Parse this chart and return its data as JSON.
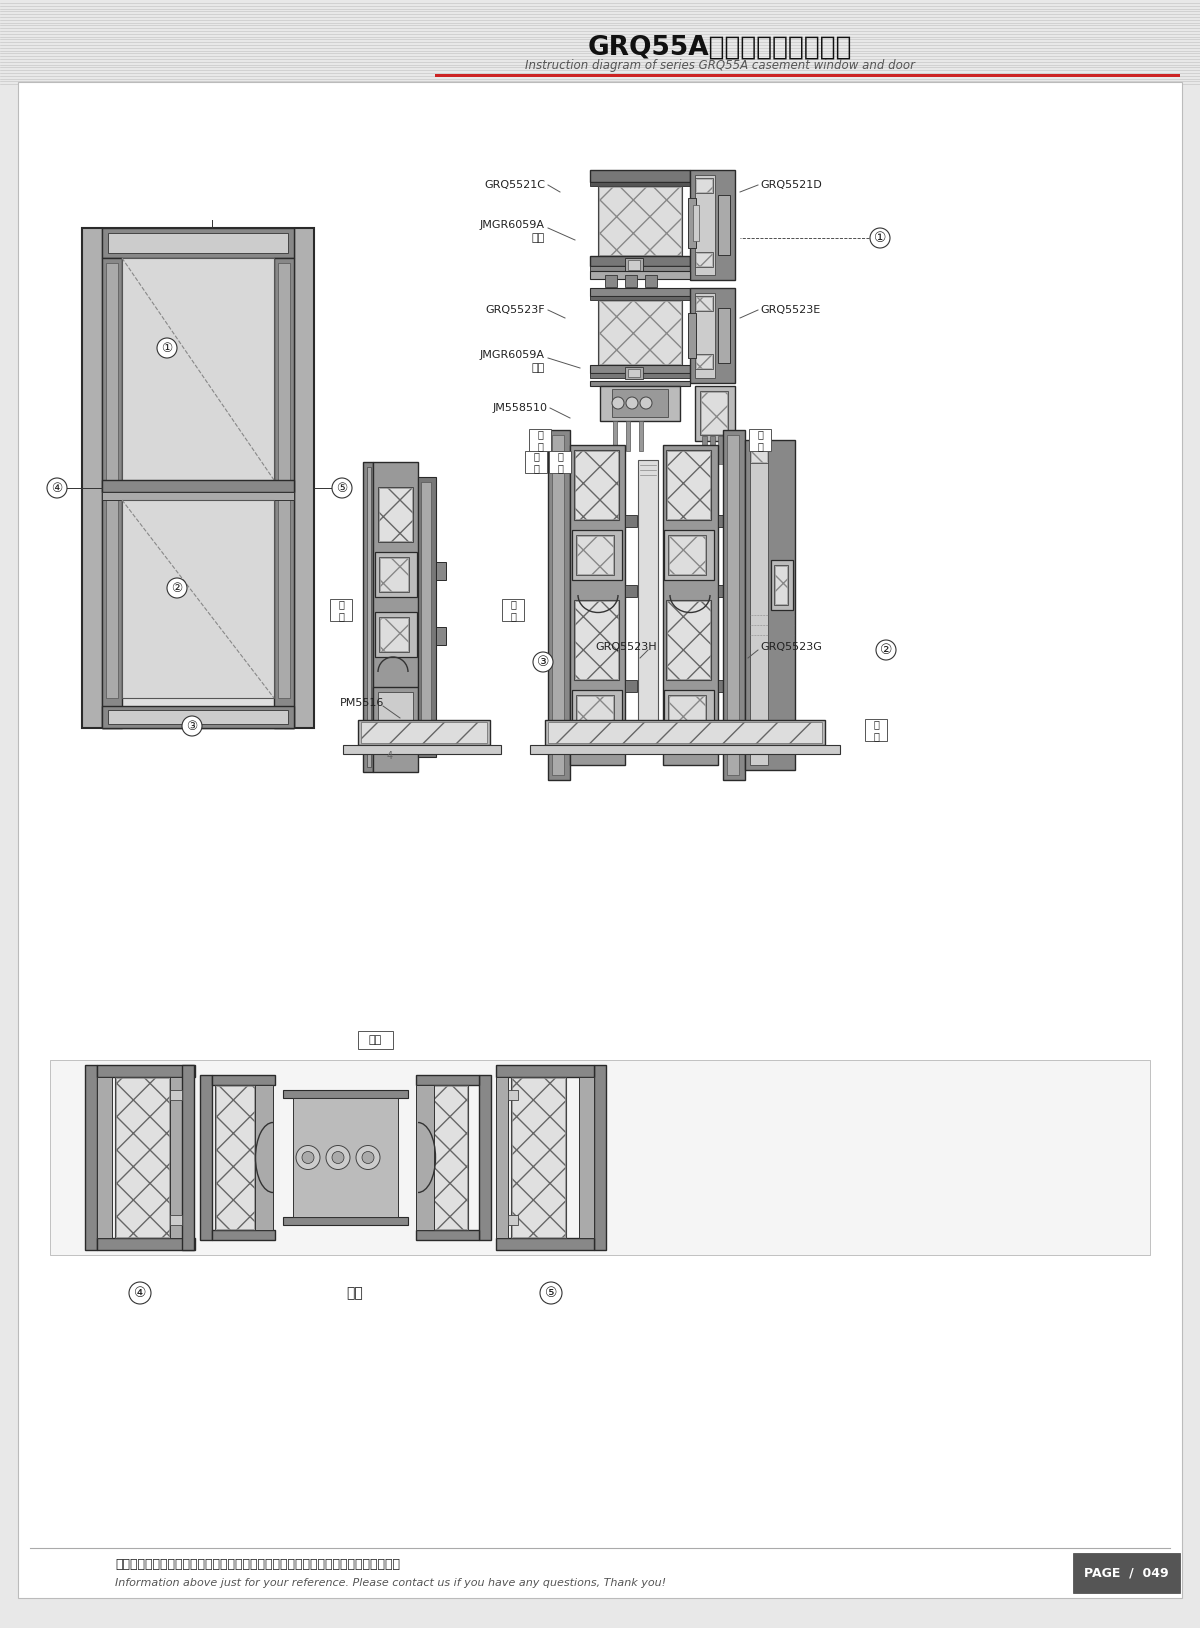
{
  "title_cn": "GRQ55A系列平开门窗结构图",
  "title_en": "Instruction diagram of series GRQ55A casement window and door",
  "footer_cn": "图中所示型材截面、装配、编号、尺寸及重量仅供参考。如有疑问，请向本公司查询。",
  "footer_en": "Information above just for your reference. Please contact us if you have any questions, Thank you!",
  "page": "PAGE  /  049",
  "bg_stripe_color": "#d8d8d8",
  "paper_color": "#ffffff",
  "dark_color": "#2a2a2a",
  "gray_color": "#888888",
  "medium_gray": "#555555",
  "light_gray": "#cccccc",
  "profile_gray": "#666666",
  "fill_gray": "#999999",
  "red_color": "#cc2222",
  "label_color": "#333333",
  "hatch_color": "#aaaaaa",
  "box_color": "#444444"
}
